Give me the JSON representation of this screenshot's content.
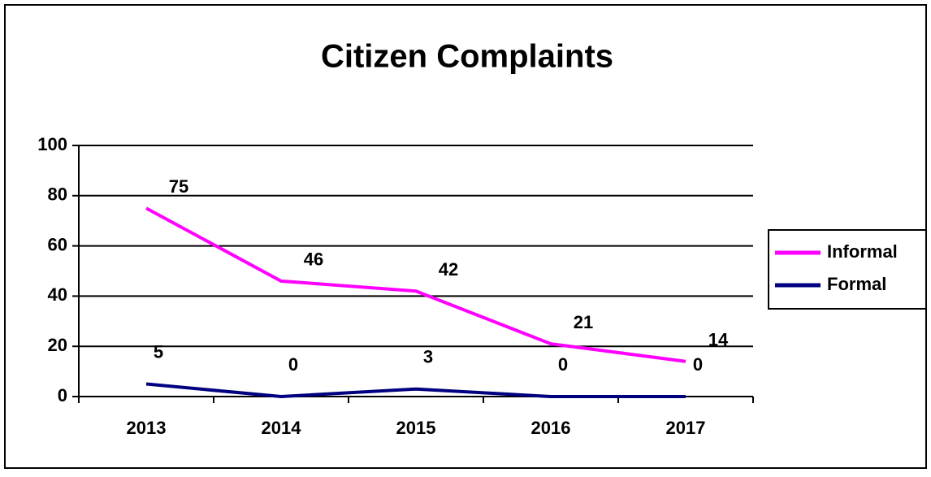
{
  "chart_data": {
    "type": "line",
    "title": "Citizen Complaints",
    "categories": [
      "2013",
      "2014",
      "2015",
      "2016",
      "2017"
    ],
    "series": [
      {
        "name": "Informal",
        "color": "#ff00ff",
        "values": [
          75,
          46,
          42,
          21,
          14
        ]
      },
      {
        "name": "Formal",
        "color": "#000080",
        "values": [
          5,
          0,
          3,
          0,
          0
        ]
      }
    ],
    "ylim": [
      0,
      100
    ],
    "yticks": [
      0,
      20,
      40,
      60,
      80,
      100
    ],
    "grid": true,
    "legend": "right"
  }
}
